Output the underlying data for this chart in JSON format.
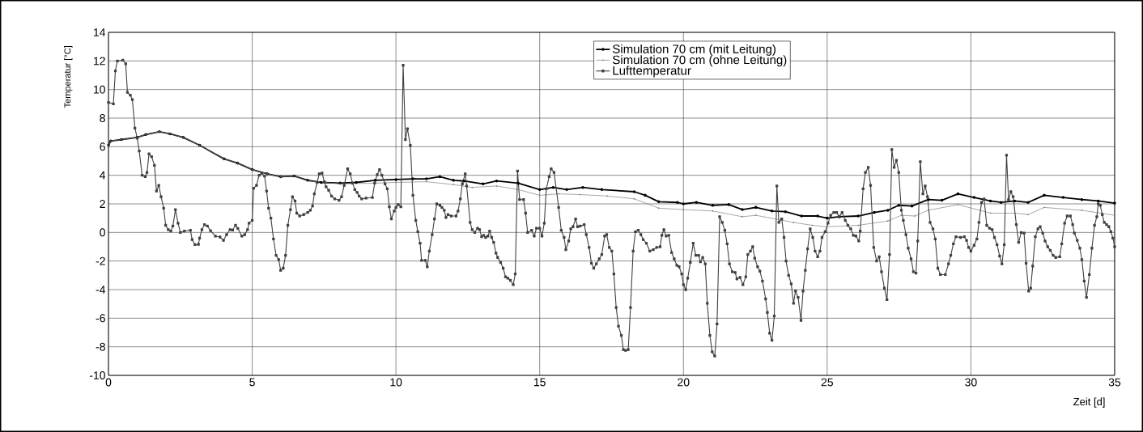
{
  "chart_data": {
    "type": "line",
    "xlabel": "Zeit [d]",
    "ylabel": "Temperatur [°C]",
    "xlim": [
      0,
      35
    ],
    "ylim": [
      -10,
      14
    ],
    "xticks": [
      0,
      5,
      10,
      15,
      20,
      25,
      30,
      35
    ],
    "yticks": [
      -10,
      -8,
      -6,
      -4,
      -2,
      0,
      2,
      4,
      6,
      8,
      10,
      12,
      14
    ],
    "grid": true,
    "legend": "top",
    "line_style": "solid",
    "series": [
      {
        "name": "Simulation 70 cm (mit Leitung)",
        "color": "#000000",
        "marker": "circle",
        "x": [
          0,
          0.08,
          0.45,
          1.0,
          1.3,
          1.77,
          2.14,
          2.6,
          3.17,
          4.02,
          4.49,
          5.0,
          5.52,
          5.99,
          6.46,
          6.93,
          7.4,
          8.06,
          8.62,
          9.28,
          10.0,
          10.59,
          11.06,
          11.53,
          12.0,
          12.37,
          13.03,
          13.5,
          14.25,
          15.0,
          15.47,
          15.94,
          16.5,
          17.16,
          18.29,
          18.67,
          19.14,
          19.79,
          20.0,
          20.45,
          21.02,
          21.58,
          22.05,
          22.52,
          23.08,
          23.55,
          24.11,
          24.67,
          25.0,
          25.42,
          26.08,
          26.64,
          27.11,
          27.49,
          27.95,
          28.52,
          28.99,
          29.55,
          30.11,
          30.68,
          31.05,
          31.52,
          31.99,
          32.55,
          33.21,
          33.86,
          34.43,
          35.0
        ],
        "values": [
          6.1,
          6.4,
          6.5,
          6.65,
          6.85,
          7.05,
          6.9,
          6.65,
          6.1,
          5.15,
          4.85,
          4.4,
          4.1,
          3.9,
          3.95,
          3.65,
          3.5,
          3.45,
          3.5,
          3.65,
          3.7,
          3.75,
          3.75,
          3.9,
          3.65,
          3.6,
          3.4,
          3.6,
          3.45,
          3.0,
          3.15,
          3.0,
          3.15,
          3.0,
          2.85,
          2.6,
          2.15,
          2.1,
          2.0,
          2.1,
          1.9,
          1.95,
          1.6,
          1.75,
          1.5,
          1.45,
          1.15,
          1.15,
          1.0,
          1.1,
          1.15,
          1.4,
          1.55,
          1.9,
          1.85,
          2.3,
          2.25,
          2.7,
          2.45,
          2.2,
          2.1,
          2.2,
          2.1,
          2.6,
          2.45,
          2.3,
          2.2,
          2.05
        ]
      },
      {
        "name": "Simulation 70 cm (ohne Leitung)",
        "color": "#808080",
        "marker": "circle",
        "x": [
          0,
          0.08,
          0.45,
          1.0,
          1.3,
          1.77,
          2.14,
          2.6,
          3.17,
          4.02,
          4.49,
          5.0,
          5.52,
          5.99,
          6.46,
          6.93,
          8.06,
          9.28,
          10.0,
          11.06,
          12.0,
          12.65,
          13.5,
          14.25,
          15.0,
          15.66,
          16.41,
          17.35,
          18.29,
          19.14,
          20.0,
          21.02,
          22.05,
          22.52,
          23.83,
          24.48,
          25.0,
          26.08,
          27.11,
          27.58,
          28.05,
          28.52,
          29.55,
          30.68,
          31.52,
          31.99,
          32.55,
          33.86,
          35.0
        ],
        "values": [
          6.1,
          6.4,
          6.5,
          6.65,
          6.85,
          7.05,
          6.9,
          6.65,
          6.1,
          5.15,
          4.85,
          4.4,
          4.1,
          3.9,
          3.95,
          3.6,
          3.4,
          3.45,
          3.5,
          3.55,
          3.35,
          3.15,
          3.25,
          3.0,
          2.6,
          2.7,
          2.65,
          2.55,
          2.35,
          1.7,
          1.6,
          1.5,
          1.1,
          1.2,
          0.7,
          0.5,
          0.4,
          0.5,
          0.8,
          1.2,
          1.15,
          1.55,
          1.95,
          1.35,
          1.35,
          1.25,
          1.75,
          1.55,
          1.2
        ]
      },
      {
        "name": "Lufttemperatur",
        "color": "#404040",
        "marker": "square",
        "x": [
          0,
          0.17,
          0.24,
          0.31,
          0.5,
          0.6,
          0.66,
          0.76,
          0.83,
          0.92,
          1.0,
          1.07,
          1.17,
          1.28,
          1.34,
          1.41,
          1.5,
          1.6,
          1.67,
          1.75,
          1.83,
          1.92,
          1.99,
          2.08,
          2.17,
          2.24,
          2.33,
          2.42,
          2.5,
          2.64,
          2.85,
          2.91,
          3.01,
          3.13,
          3.17,
          3.25,
          3.34,
          3.44,
          3.55,
          3.72,
          3.88,
          4.0,
          4.11,
          4.23,
          4.32,
          4.42,
          4.5,
          4.64,
          4.74,
          4.84,
          4.89,
          5.0,
          5.05,
          5.15,
          5.24,
          5.33,
          5.43,
          5.5,
          5.57,
          5.65,
          5.74,
          5.83,
          5.92,
          5.99,
          6.08,
          6.16,
          6.24,
          6.33,
          6.4,
          6.49,
          6.55,
          6.65,
          6.79,
          6.93,
          7.02,
          7.1,
          7.16,
          7.26,
          7.33,
          7.43,
          7.51,
          7.57,
          7.66,
          7.76,
          7.87,
          8.02,
          8.11,
          8.2,
          8.32,
          8.41,
          8.49,
          8.57,
          8.65,
          8.72,
          8.81,
          8.96,
          9.18,
          9.26,
          9.35,
          9.43,
          9.51,
          9.62,
          9.7,
          9.77,
          9.84,
          9.94,
          10.0,
          10.08,
          10.17,
          10.25,
          10.33,
          10.4,
          10.5,
          10.59,
          10.69,
          10.76,
          10.84,
          10.89,
          11.02,
          11.09,
          11.16,
          11.26,
          11.34,
          11.42,
          11.53,
          11.6,
          11.68,
          11.74,
          11.81,
          11.92,
          12.09,
          12.16,
          12.24,
          12.31,
          12.41,
          12.46,
          12.58,
          12.65,
          12.74,
          12.84,
          12.91,
          12.98,
          13.05,
          13.12,
          13.2,
          13.26,
          13.33,
          13.4,
          13.48,
          13.54,
          13.64,
          13.73,
          13.81,
          13.89,
          13.98,
          14.08,
          14.15,
          14.23,
          14.3,
          14.44,
          14.51,
          14.58,
          14.72,
          14.81,
          14.89,
          15.0,
          15.08,
          15.16,
          15.23,
          15.33,
          15.4,
          15.5,
          15.66,
          15.75,
          15.85,
          15.91,
          16.01,
          16.08,
          16.16,
          16.25,
          16.32,
          16.41,
          16.55,
          16.62,
          16.72,
          16.8,
          16.88,
          16.97,
          17.07,
          17.16,
          17.26,
          17.33,
          17.42,
          17.51,
          17.58,
          17.66,
          17.74,
          17.84,
          17.91,
          17.99,
          18.08,
          18.16,
          18.25,
          18.33,
          18.43,
          18.52,
          18.6,
          18.71,
          18.83,
          18.95,
          19.07,
          19.19,
          19.25,
          19.32,
          19.4,
          19.49,
          19.59,
          19.68,
          19.77,
          19.85,
          19.94,
          20.0,
          20.08,
          20.15,
          20.24,
          20.34,
          20.43,
          20.53,
          20.59,
          20.67,
          20.76,
          20.83,
          20.92,
          21.0,
          21.09,
          21.17,
          21.26,
          21.35,
          21.44,
          21.52,
          21.6,
          21.7,
          21.8,
          21.86,
          21.97,
          22.07,
          22.17,
          22.24,
          22.33,
          22.41,
          22.48,
          22.58,
          22.66,
          22.75,
          22.86,
          22.92,
          23.0,
          23.08,
          23.16,
          23.25,
          23.32,
          23.42,
          23.5,
          23.57,
          23.66,
          23.75,
          23.83,
          23.9,
          23.99,
          24.09,
          24.16,
          24.24,
          24.32,
          24.41,
          24.5,
          24.58,
          24.67,
          24.75,
          24.82,
          24.93,
          25.03,
          25.12,
          25.23,
          25.33,
          25.42,
          25.52,
          25.63,
          25.72,
          25.82,
          25.91,
          26.0,
          26.1,
          26.15,
          26.25,
          26.33,
          26.43,
          26.51,
          26.62,
          26.72,
          26.81,
          26.89,
          26.99,
          27.08,
          27.17,
          27.25,
          27.33,
          27.41,
          27.49,
          27.58,
          27.65,
          27.74,
          27.82,
          27.92,
          28.0,
          28.09,
          28.15,
          28.24,
          28.33,
          28.41,
          28.49,
          28.58,
          28.68,
          28.76,
          28.85,
          28.94,
          29.11,
          29.22,
          29.3,
          29.39,
          29.48,
          29.64,
          29.77,
          29.85,
          29.92,
          30.0,
          30.11,
          30.21,
          30.28,
          30.37,
          30.46,
          30.55,
          30.65,
          30.74,
          30.82,
          30.91,
          31.0,
          31.08,
          31.16,
          31.24,
          31.31,
          31.39,
          31.47,
          31.58,
          31.66,
          31.75,
          31.85,
          31.92,
          32.01,
          32.08,
          32.15,
          32.24,
          32.33,
          32.41,
          32.5,
          32.58,
          32.67,
          32.76,
          32.86,
          32.95,
          33.09,
          33.16,
          33.26,
          33.35,
          33.46,
          33.54,
          33.6,
          33.7,
          33.79,
          33.86,
          33.94,
          34.02,
          34.12,
          34.21,
          34.3,
          34.38,
          34.43,
          34.5,
          34.57,
          34.64,
          34.72,
          34.8,
          34.87,
          34.94,
          35.0
        ],
        "values": [
          9.1,
          9.0,
          11.3,
          12.0,
          12.05,
          11.8,
          9.8,
          9.6,
          9.3,
          7.3,
          6.6,
          5.7,
          4.0,
          3.9,
          4.2,
          5.5,
          5.3,
          4.7,
          2.9,
          3.3,
          2.5,
          1.7,
          0.5,
          0.2,
          0.1,
          0.45,
          1.6,
          0.65,
          0.0,
          0.1,
          0.15,
          -0.5,
          -0.85,
          -0.83,
          -0.4,
          0.2,
          0.55,
          0.45,
          0.13,
          -0.26,
          -0.32,
          -0.55,
          -0.15,
          0.2,
          0.17,
          0.5,
          0.28,
          -0.26,
          -0.15,
          0.2,
          0.65,
          0.85,
          3.1,
          3.3,
          4.0,
          4.15,
          3.95,
          2.9,
          1.7,
          1.0,
          -0.45,
          -1.6,
          -1.9,
          -2.65,
          -2.5,
          -1.6,
          0.5,
          1.6,
          2.5,
          2.2,
          1.35,
          1.15,
          1.25,
          1.4,
          1.55,
          1.85,
          2.7,
          3.5,
          4.1,
          4.15,
          3.55,
          3.2,
          2.95,
          2.55,
          2.35,
          2.25,
          2.5,
          3.3,
          4.45,
          4.1,
          3.45,
          3.0,
          2.8,
          2.55,
          2.35,
          2.4,
          2.45,
          3.45,
          4.05,
          4.4,
          4.0,
          3.4,
          3.05,
          1.8,
          0.95,
          1.5,
          1.75,
          1.95,
          1.8,
          11.7,
          6.5,
          7.25,
          6.1,
          2.6,
          0.85,
          0.05,
          -0.75,
          -1.95,
          -1.95,
          -2.4,
          -1.3,
          -0.15,
          0.95,
          2.0,
          1.9,
          1.75,
          1.55,
          1.05,
          1.25,
          1.15,
          1.15,
          1.5,
          2.35,
          3.4,
          4.1,
          3.25,
          0.7,
          0.2,
          0.0,
          0.3,
          0.2,
          -0.3,
          -0.2,
          -0.35,
          -0.25,
          0.1,
          -0.35,
          -0.7,
          -1.45,
          -1.75,
          -2.1,
          -2.5,
          -3.1,
          -3.2,
          -3.35,
          -3.65,
          -2.9,
          4.3,
          2.3,
          2.3,
          1.35,
          0.0,
          0.15,
          -0.25,
          0.3,
          0.3,
          -0.25,
          0.65,
          3.05,
          3.9,
          4.45,
          4.2,
          1.75,
          0.15,
          -0.35,
          -1.2,
          -0.6,
          0.25,
          0.4,
          0.95,
          0.4,
          0.45,
          0.55,
          -0.15,
          -1.05,
          -2.15,
          -2.5,
          -2.2,
          -1.85,
          -1.55,
          -0.25,
          -0.15,
          -1.05,
          -1.3,
          -2.9,
          -5.25,
          -6.55,
          -7.2,
          -8.2,
          -8.25,
          -8.2,
          -5.25,
          -1.3,
          0.05,
          0.15,
          -0.15,
          -0.5,
          -0.75,
          -1.3,
          -1.2,
          -1.05,
          -1.0,
          -0.2,
          0.2,
          -0.25,
          -0.2,
          -1.4,
          -1.85,
          -2.3,
          -2.4,
          -2.9,
          -3.65,
          -4.0,
          -3.2,
          -2.1,
          -0.75,
          -1.6,
          -1.6,
          -2.05,
          -1.75,
          -2.2,
          -4.95,
          -7.2,
          -8.35,
          -8.65,
          -6.4,
          1.1,
          0.7,
          0.15,
          -0.8,
          -2.2,
          -2.75,
          -2.8,
          -3.25,
          -3.15,
          -3.65,
          -3.1,
          -1.55,
          -1.3,
          -1.0,
          -1.8,
          -2.4,
          -2.7,
          -3.4,
          -4.65,
          -5.6,
          -7.05,
          -7.55,
          -5.85,
          3.25,
          0.7,
          0.95,
          -0.35,
          -2.0,
          -3.0,
          -3.6,
          -4.95,
          -4.1,
          -4.55,
          -6.15,
          -4.1,
          -2.65,
          -1.15,
          0.25,
          -0.35,
          -1.3,
          -1.7,
          -1.3,
          -0.35,
          0.05,
          0.65,
          1.2,
          1.4,
          1.4,
          1.1,
          1.4,
          0.85,
          0.5,
          0.25,
          -0.2,
          -0.25,
          -0.6,
          0.1,
          3.05,
          4.2,
          4.55,
          3.3,
          -1.05,
          -2.0,
          -1.7,
          -2.75,
          -3.9,
          -4.7,
          -1.55,
          5.8,
          4.55,
          5.05,
          4.2,
          1.55,
          0.85,
          -0.15,
          -1.1,
          -1.85,
          -2.75,
          -2.85,
          -0.6,
          4.95,
          2.7,
          3.25,
          2.5,
          0.7,
          0.25,
          -0.45,
          -2.5,
          -2.95,
          -2.95,
          -2.2,
          -1.6,
          -0.8,
          -0.3,
          -0.35,
          -0.3,
          -0.55,
          -1.05,
          -1.3,
          -0.9,
          -0.45,
          0.7,
          2.1,
          2.35,
          0.5,
          0.3,
          0.2,
          -0.35,
          -0.85,
          -1.65,
          -2.2,
          -0.85,
          5.4,
          2.3,
          2.85,
          2.5,
          0.55,
          -0.7,
          0.0,
          -0.05,
          -2.15,
          -4.1,
          -3.9,
          -2.35,
          -0.3,
          0.25,
          0.4,
          -0.05,
          -0.6,
          -1.0,
          -1.25,
          -1.6,
          -1.75,
          -1.7,
          -0.8,
          0.65,
          1.15,
          1.15,
          0.55,
          -0.05,
          -0.55,
          -1.1,
          -1.9,
          -3.4,
          -4.55,
          -2.95,
          -1.1,
          0.5,
          1.1,
          2.0,
          1.9,
          1.25,
          0.7,
          0.55,
          0.4,
          0.05,
          -0.4,
          -1.0
        ]
      }
    ]
  }
}
